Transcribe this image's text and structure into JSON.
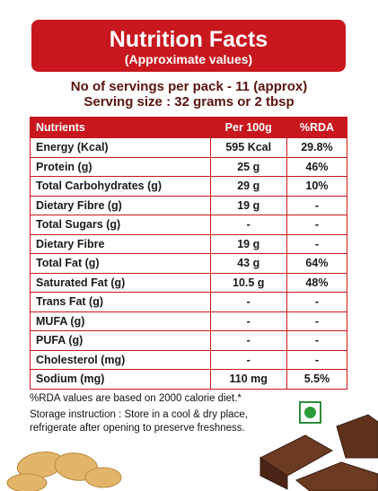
{
  "header": {
    "title": "Nutrition Facts",
    "subtitle": "(Approximate values)"
  },
  "servings": [
    "No of servings per pack - 11 (approx)",
    "Serving size : 32 grams or 2 tbsp"
  ],
  "table": {
    "columns": [
      "Nutrients",
      "Per 100g",
      "%RDA"
    ],
    "rows": [
      [
        "Energy (Kcal)",
        "595 Kcal",
        "29.8%"
      ],
      [
        "Protein (g)",
        "25 g",
        "46%"
      ],
      [
        "Total Carbohydrates (g)",
        "29 g",
        "10%"
      ],
      [
        "Dietary Fibre (g)",
        "19 g",
        "-"
      ],
      [
        "Total Sugars (g)",
        "-",
        "-"
      ],
      [
        "Dietary Fibre",
        "19 g",
        "-"
      ],
      [
        "Total Fat (g)",
        "43 g",
        "64%"
      ],
      [
        "Saturated Fat (g)",
        "10.5 g",
        "48%"
      ],
      [
        "Trans Fat (g)",
        "-",
        "-"
      ],
      [
        "MUFA (g)",
        "-",
        "-"
      ],
      [
        "PUFA (g)",
        "-",
        "-"
      ],
      [
        "Cholesterol (mg)",
        "-",
        "-"
      ],
      [
        "Sodium (mg)",
        "110 mg",
        "5.5%"
      ]
    ]
  },
  "notes": [
    "%RDA values are based on 2000 calorie diet.*",
    "Storage instruction : Store in a cool & dry place,",
    "refrigerate after opening to preserve freshness."
  ]
}
